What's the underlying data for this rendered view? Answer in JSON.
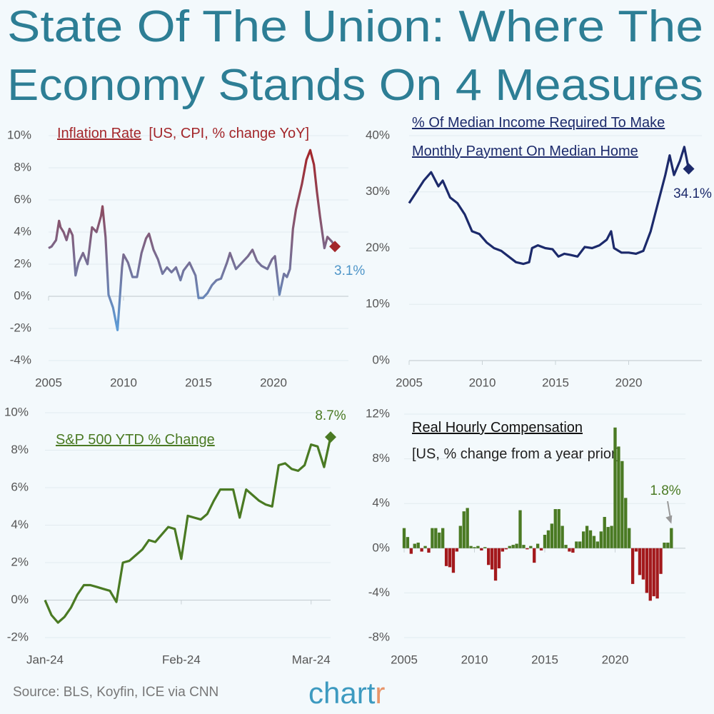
{
  "title": [
    "State Of The Union: Where The",
    "Economy Stands On 4 Measures"
  ],
  "source": "Source: BLS, Koyfin, ICE via CNN",
  "logo": [
    "chart",
    "r"
  ],
  "chart_data": [
    {
      "type": "line",
      "title": "Inflation Rate",
      "subtitle": "[US, CPI, % change YoY]",
      "title_color": "#a3262a",
      "xlim": [
        2005,
        2025
      ],
      "xticks": [
        2005,
        2010,
        2015,
        2020
      ],
      "ylim": [
        -4,
        10
      ],
      "yticks": [
        {
          "value": -4,
          "label": "-4%"
        },
        {
          "value": -2,
          "label": "-2%"
        },
        {
          "value": 0,
          "label": "0%"
        },
        {
          "value": 2,
          "label": "2%"
        },
        {
          "value": 4,
          "label": "4%"
        },
        {
          "value": 6,
          "label": "6%"
        },
        {
          "value": 8,
          "label": "8%"
        },
        {
          "value": 10,
          "label": "10%"
        }
      ],
      "grid": true,
      "series": [
        {
          "name": "Inflation Rate",
          "color_top": "#a3262a",
          "color_bottom": "#5c9bd6",
          "label_color": "#4e95c8",
          "x": [
            2005.0,
            2005.2,
            2005.5,
            2005.7,
            2005.8,
            2006.0,
            2006.2,
            2006.4,
            2006.6,
            2006.8,
            2007.0,
            2007.3,
            2007.6,
            2007.9,
            2008.2,
            2008.5,
            2008.6,
            2008.8,
            2009.0,
            2009.3,
            2009.6,
            2009.9,
            2010.0,
            2010.3,
            2010.6,
            2010.9,
            2011.2,
            2011.5,
            2011.7,
            2012.0,
            2012.3,
            2012.6,
            2012.9,
            2013.2,
            2013.5,
            2013.8,
            2014.0,
            2014.4,
            2014.8,
            2015.0,
            2015.3,
            2015.6,
            2015.9,
            2016.2,
            2016.5,
            2016.9,
            2017.1,
            2017.5,
            2017.9,
            2018.3,
            2018.6,
            2018.9,
            2019.2,
            2019.6,
            2019.9,
            2020.1,
            2020.4,
            2020.7,
            2020.9,
            2021.1,
            2021.3,
            2021.5,
            2021.9,
            2022.2,
            2022.45,
            2022.7,
            2022.9,
            2023.1,
            2023.4,
            2023.6,
            2023.9,
            2024.1
          ],
          "values": [
            3.0,
            3.1,
            3.5,
            4.7,
            4.3,
            4.0,
            3.5,
            4.2,
            3.8,
            1.3,
            2.1,
            2.7,
            2.0,
            4.3,
            4.0,
            5.0,
            5.6,
            3.7,
            0.1,
            -0.7,
            -2.1,
            1.8,
            2.6,
            2.1,
            1.2,
            1.2,
            2.7,
            3.6,
            3.9,
            2.9,
            2.3,
            1.4,
            1.8,
            1.5,
            1.8,
            1.0,
            1.6,
            2.1,
            1.3,
            -0.1,
            -0.1,
            0.2,
            0.7,
            1.0,
            1.1,
            2.1,
            2.7,
            1.7,
            2.1,
            2.5,
            2.9,
            2.2,
            1.9,
            1.7,
            2.3,
            2.5,
            0.1,
            1.4,
            1.2,
            1.7,
            4.2,
            5.4,
            7.0,
            8.5,
            9.1,
            8.2,
            6.5,
            5.0,
            3.0,
            3.7,
            3.4,
            3.1
          ],
          "value_labels": {
            "71": "3.1%"
          }
        }
      ]
    },
    {
      "type": "line",
      "title": [
        "% Of Median Income Required To Make",
        "Monthly Payment On Median Home"
      ],
      "title_color": "#1c2a6b",
      "xlim": [
        2005,
        2025
      ],
      "xticks": [
        2005,
        2010,
        2015,
        2020
      ],
      "ylim": [
        0,
        40
      ],
      "yticks": [
        {
          "value": 0,
          "label": "0%"
        },
        {
          "value": 10,
          "label": "10%"
        },
        {
          "value": 20,
          "label": "20%"
        },
        {
          "value": 30,
          "label": "30%"
        },
        {
          "value": 40,
          "label": "40%"
        }
      ],
      "grid": true,
      "series": [
        {
          "name": "% Of Median Income",
          "color": "#1c2a6b",
          "label_color": "#1c2a6b",
          "x": [
            2005.0,
            2005.5,
            2006.0,
            2006.5,
            2007.0,
            2007.3,
            2007.8,
            2008.3,
            2008.8,
            2009.3,
            2009.8,
            2010.3,
            2010.8,
            2011.3,
            2011.8,
            2012.3,
            2012.8,
            2013.2,
            2013.4,
            2013.8,
            2014.3,
            2014.8,
            2015.2,
            2015.6,
            2016.0,
            2016.5,
            2017.0,
            2017.5,
            2018.0,
            2018.5,
            2018.8,
            2019.0,
            2019.5,
            2020.0,
            2020.5,
            2021.0,
            2021.5,
            2022.0,
            2022.5,
            2022.8,
            2023.1,
            2023.5,
            2023.8,
            2024.1
          ],
          "values": [
            28,
            30,
            32,
            33.5,
            31,
            32,
            29,
            28,
            26,
            23,
            22.5,
            21,
            20,
            19.5,
            18.5,
            17.5,
            17.2,
            17.5,
            20,
            20.5,
            20,
            19.8,
            18.5,
            19,
            18.8,
            18.5,
            20.2,
            20,
            20.5,
            21.5,
            23,
            20,
            19.2,
            19.2,
            19,
            19.5,
            23,
            28,
            33,
            36.5,
            33,
            35.5,
            38,
            34.1
          ],
          "value_labels": {
            "43": "34.1%"
          }
        }
      ]
    },
    {
      "type": "line",
      "title": "S&P 500 YTD % Change",
      "title_color": "#4a7a23",
      "categories": [
        "Jan-24",
        null,
        null,
        null,
        null,
        null,
        null,
        null,
        null,
        null,
        null,
        null,
        null,
        null,
        null,
        null,
        null,
        null,
        null,
        null,
        null,
        "Feb-24",
        null,
        null,
        null,
        null,
        null,
        null,
        null,
        null,
        null,
        null,
        null,
        null,
        null,
        null,
        null,
        null,
        null,
        null,
        null,
        "Mar-24",
        null,
        null,
        null
      ],
      "ylim": [
        -2,
        10
      ],
      "yticks": [
        {
          "value": -2,
          "label": "-2%"
        },
        {
          "value": 0,
          "label": "0%"
        },
        {
          "value": 2,
          "label": "2%"
        },
        {
          "value": 4,
          "label": "4%"
        },
        {
          "value": 6,
          "label": "6%"
        },
        {
          "value": 8,
          "label": "8%"
        },
        {
          "value": 10,
          "label": "10%"
        }
      ],
      "grid": true,
      "series": [
        {
          "name": "S&P 500 YTD % Change",
          "color": "#4a7a23",
          "label_color": "#4a7a23",
          "values": [
            0,
            -0.8,
            -1.2,
            -0.9,
            -0.4,
            0.3,
            0.8,
            0.8,
            0.7,
            0.6,
            0.5,
            -0.1,
            2.0,
            2.1,
            2.4,
            2.7,
            3.2,
            3.1,
            3.5,
            3.9,
            3.8,
            2.2,
            4.5,
            4.4,
            4.3,
            4.6,
            5.3,
            5.9,
            5.9,
            5.9,
            4.4,
            5.9,
            5.6,
            5.3,
            5.1,
            5.0,
            7.2,
            7.3,
            7.0,
            6.9,
            7.2,
            8.3,
            8.2,
            7.1,
            8.7
          ],
          "value_labels": {
            "44": "8.7%"
          }
        }
      ]
    },
    {
      "type": "bar",
      "title": "Real Hourly Compensation",
      "subtitle": "[US, % change from a year prior]",
      "title_color": "#111111",
      "xlim": [
        2005,
        2025
      ],
      "xticks": [
        2005,
        2010,
        2015,
        2020
      ],
      "ylim": [
        -8,
        12
      ],
      "yticks": [
        {
          "value": -8,
          "label": "-8%"
        },
        {
          "value": -4,
          "label": "-4%"
        },
        {
          "value": 0,
          "label": "0%"
        },
        {
          "value": 4,
          "label": "4%"
        },
        {
          "value": 8,
          "label": "8%"
        },
        {
          "value": 12,
          "label": "12%"
        }
      ],
      "grid": true,
      "series": [
        {
          "name": "Real Hourly Compensation",
          "color_positive": "#4a7a23",
          "color_negative": "#a3191c",
          "label_color": "#4a7a23",
          "x": [
            2005,
            2005.25,
            2005.5,
            2005.75,
            2006,
            2006.25,
            2006.5,
            2006.75,
            2007,
            2007.25,
            2007.5,
            2007.75,
            2008,
            2008.25,
            2008.5,
            2008.75,
            2009,
            2009.25,
            2009.5,
            2009.75,
            2010,
            2010.25,
            2010.5,
            2010.75,
            2011,
            2011.25,
            2011.5,
            2011.75,
            2012,
            2012.25,
            2012.5,
            2012.75,
            2013,
            2013.25,
            2013.5,
            2013.75,
            2014,
            2014.25,
            2014.5,
            2014.75,
            2015,
            2015.25,
            2015.5,
            2015.75,
            2016,
            2016.25,
            2016.5,
            2016.75,
            2017,
            2017.25,
            2017.5,
            2017.75,
            2018,
            2018.25,
            2018.5,
            2018.75,
            2019,
            2019.25,
            2019.5,
            2019.75,
            2020,
            2020.25,
            2020.5,
            2020.75,
            2021,
            2021.25,
            2021.5,
            2021.75,
            2022,
            2022.25,
            2022.5,
            2022.75,
            2023,
            2023.25,
            2023.5,
            2023.75,
            2024
          ],
          "values": [
            1.8,
            1.0,
            -0.5,
            0.4,
            0.5,
            -0.3,
            0.2,
            -0.4,
            1.8,
            1.8,
            1.4,
            1.8,
            -1.6,
            -1.7,
            -2.2,
            -0.3,
            2.0,
            3.3,
            3.6,
            0.2,
            0.1,
            0.2,
            -0.2,
            0.1,
            -1.5,
            -1.9,
            -2.9,
            -1.8,
            -0.3,
            -0.1,
            0.2,
            0.3,
            0.4,
            3.4,
            0.3,
            -0.1,
            0.2,
            -1.3,
            0.4,
            -0.2,
            1.2,
            1.6,
            2.2,
            3.5,
            3.5,
            2.0,
            0.3,
            -0.3,
            -0.4,
            0.6,
            0.6,
            1.5,
            2.0,
            1.6,
            1.1,
            0.6,
            1.5,
            2.8,
            1.9,
            2.0,
            10.8,
            9.1,
            7.8,
            4.5,
            1.8,
            -3.2,
            -0.3,
            -2.4,
            -2.8,
            -4.0,
            -4.7,
            -4.3,
            -4.5,
            -2.3,
            0.5,
            0.5,
            1.8
          ],
          "value_labels": {
            "76": "1.8%"
          }
        }
      ]
    }
  ]
}
